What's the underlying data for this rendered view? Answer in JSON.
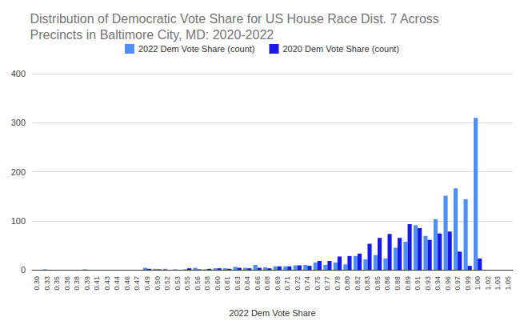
{
  "chart_data": {
    "type": "bar",
    "title": "Distribution of Democratic Vote Share for US House Race Dist. 7 Across Precincts in Baltimore City, MD: 2020-2022",
    "x_label": "2022 Dem Vote Share",
    "categories": [
      "0.30",
      "0.33",
      "0.35",
      "0.36",
      "0.38",
      "0.39",
      "0.41",
      "0.43",
      "0.44",
      "0.46",
      "0.47",
      "0.49",
      "0.50",
      "0.52",
      "0.53",
      "0.55",
      "0.56",
      "0.58",
      "0.60",
      "0.61",
      "0.63",
      "0.64",
      "0.66",
      "0.68",
      "0.69",
      "0.71",
      "0.72",
      "0.74",
      "0.75",
      "0.77",
      "0.78",
      "0.80",
      "0.82",
      "0.83",
      "0.85",
      "0.86",
      "0.88",
      "0.89",
      "0.91",
      "0.93",
      "0.94",
      "0.96",
      "0.97",
      "0.99",
      "1.00",
      "1.02",
      "1.03",
      "1.05"
    ],
    "series": [
      {
        "name": "2022 Dem Vote Share (count)",
        "color": "#4d8ff5",
        "values": [
          0,
          1,
          0,
          0,
          0,
          1,
          0,
          0,
          0,
          0,
          0,
          4,
          2,
          2,
          1,
          1,
          4,
          1,
          3,
          3,
          6,
          4,
          10,
          5,
          7,
          7,
          9,
          10,
          15,
          10,
          15,
          11,
          28,
          21,
          30,
          23,
          45,
          57,
          91,
          69,
          103,
          151,
          166,
          144,
          310,
          0,
          0,
          0
        ]
      },
      {
        "name": "2020 Dem Vote Share (count)",
        "color": "#1a1ae8",
        "values": [
          0,
          0,
          0,
          0,
          0,
          0,
          0,
          0,
          0,
          0,
          0,
          2,
          1,
          0,
          0,
          3,
          1,
          2,
          3,
          2,
          4,
          3,
          4,
          3,
          7,
          7,
          9,
          8,
          18,
          18,
          27,
          28,
          33,
          53,
          65,
          73,
          65,
          93,
          85,
          61,
          74,
          78,
          37,
          8,
          23,
          0,
          0,
          0
        ]
      }
    ],
    "ylim": [
      0,
      400
    ],
    "yticks": [
      0,
      100,
      200,
      300,
      400
    ],
    "grid": true,
    "legend": "top"
  }
}
